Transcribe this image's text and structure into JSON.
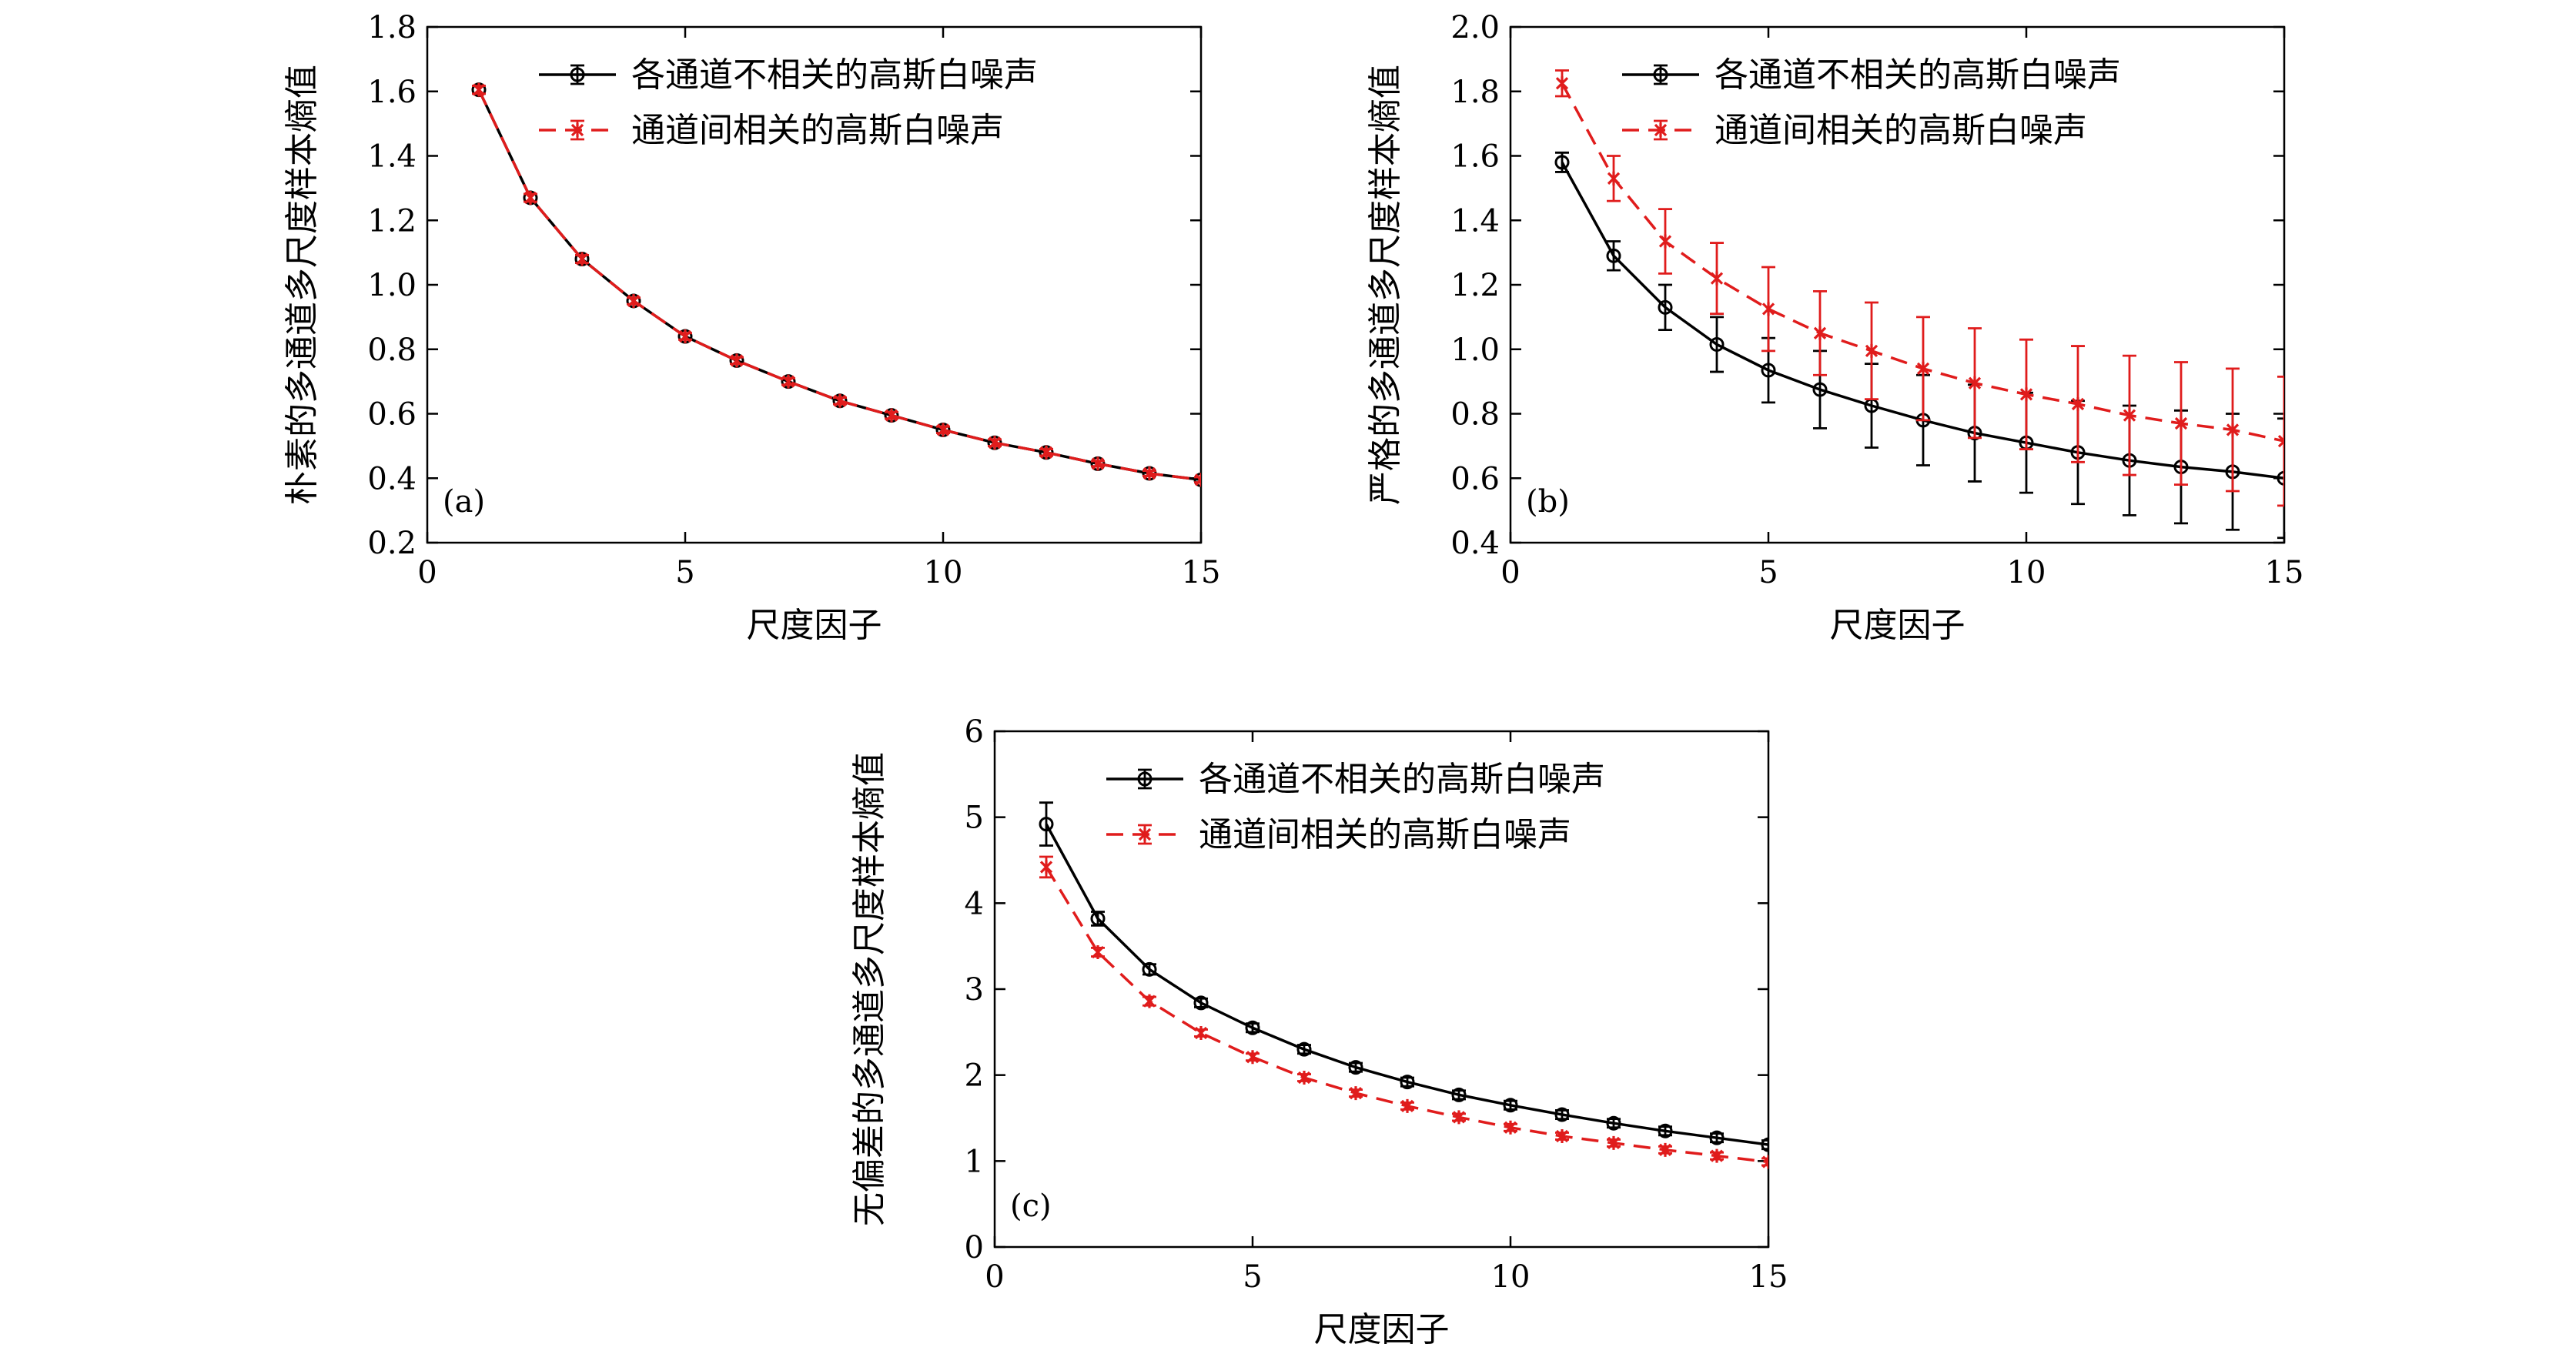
{
  "colors": {
    "uncorrelated": "#000000",
    "correlated": "#e01c1c"
  },
  "chart_data": [
    {
      "id": "a",
      "type": "line",
      "panel_label": "(a)",
      "xlabel": "尺度因子",
      "ylabel": "朴素的多通道多尺度样本熵值",
      "xlim": [
        0,
        15
      ],
      "xticks": [
        0,
        5,
        10,
        15
      ],
      "ylim": [
        0.2,
        1.8
      ],
      "yticks": [
        0.2,
        0.4,
        0.6,
        0.8,
        1.0,
        1.2,
        1.4,
        1.6,
        1.8
      ],
      "ytick_labels": [
        "0.2",
        "0.4",
        "0.6",
        "0.8",
        "1.0",
        "1.2",
        "1.4",
        "1.6",
        "1.8"
      ],
      "legend_position": "top-right",
      "x": [
        1,
        2,
        3,
        4,
        5,
        6,
        7,
        8,
        9,
        10,
        11,
        12,
        13,
        14,
        15
      ],
      "series": [
        {
          "name": "各通道不相关的高斯白噪声",
          "color_key": "uncorrelated",
          "style": "solid",
          "marker": "circle",
          "values": [
            1.605,
            1.27,
            1.08,
            0.95,
            0.84,
            0.765,
            0.7,
            0.64,
            0.595,
            0.55,
            0.51,
            0.48,
            0.445,
            0.415,
            0.395
          ],
          "errors": [
            0.012,
            0.012,
            0.012,
            0.01,
            0.01,
            0.01,
            0.01,
            0.01,
            0.01,
            0.01,
            0.01,
            0.01,
            0.008,
            0.008,
            0.008
          ]
        },
        {
          "name": "通道间相关的高斯白噪声",
          "color_key": "correlated",
          "style": "dashed",
          "marker": "x",
          "values": [
            1.605,
            1.27,
            1.08,
            0.95,
            0.84,
            0.765,
            0.7,
            0.64,
            0.595,
            0.55,
            0.51,
            0.48,
            0.445,
            0.415,
            0.395
          ],
          "errors": [
            0.012,
            0.012,
            0.012,
            0.01,
            0.01,
            0.01,
            0.01,
            0.01,
            0.01,
            0.01,
            0.01,
            0.01,
            0.008,
            0.008,
            0.008
          ]
        }
      ]
    },
    {
      "id": "b",
      "type": "line",
      "panel_label": "(b)",
      "xlabel": "尺度因子",
      "ylabel": "严格的多通道多尺度样本熵值",
      "xlim": [
        0,
        15
      ],
      "xticks": [
        0,
        5,
        10,
        15
      ],
      "ylim": [
        0.4,
        2.0
      ],
      "yticks": [
        0.4,
        0.6,
        0.8,
        1.0,
        1.2,
        1.4,
        1.6,
        1.8,
        2.0
      ],
      "ytick_labels": [
        "0.4",
        "0.6",
        "0.8",
        "1.0",
        "1.2",
        "1.4",
        "1.6",
        "1.8",
        "2.0"
      ],
      "legend_position": "top-right",
      "x": [
        1,
        2,
        3,
        4,
        5,
        6,
        7,
        8,
        9,
        10,
        11,
        12,
        13,
        14,
        15
      ],
      "series": [
        {
          "name": "各通道不相关的高斯白噪声",
          "color_key": "uncorrelated",
          "style": "solid",
          "marker": "circle",
          "values": [
            1.58,
            1.29,
            1.13,
            1.015,
            0.935,
            0.875,
            0.825,
            0.78,
            0.74,
            0.71,
            0.68,
            0.655,
            0.635,
            0.62,
            0.6
          ],
          "errors": [
            0.03,
            0.045,
            0.07,
            0.085,
            0.1,
            0.12,
            0.13,
            0.14,
            0.15,
            0.155,
            0.16,
            0.17,
            0.175,
            0.18,
            0.185
          ]
        },
        {
          "name": "通道间相关的高斯白噪声",
          "color_key": "correlated",
          "style": "dashed",
          "marker": "x",
          "values": [
            1.825,
            1.53,
            1.335,
            1.22,
            1.125,
            1.05,
            0.995,
            0.94,
            0.895,
            0.86,
            0.83,
            0.795,
            0.77,
            0.75,
            0.715
          ],
          "errors": [
            0.04,
            0.07,
            0.1,
            0.11,
            0.13,
            0.13,
            0.15,
            0.16,
            0.17,
            0.17,
            0.18,
            0.185,
            0.19,
            0.19,
            0.2
          ]
        }
      ]
    },
    {
      "id": "c",
      "type": "line",
      "panel_label": "(c)",
      "xlabel": "尺度因子",
      "ylabel": "无偏差的多通道多尺度样本熵值",
      "xlim": [
        0,
        15
      ],
      "xticks": [
        0,
        5,
        10,
        15
      ],
      "ylim": [
        0,
        6
      ],
      "yticks": [
        0,
        1,
        2,
        3,
        4,
        5,
        6
      ],
      "ytick_labels": [
        "0",
        "1",
        "2",
        "3",
        "4",
        "5",
        "6"
      ],
      "legend_position": "top-right",
      "x": [
        1,
        2,
        3,
        4,
        5,
        6,
        7,
        8,
        9,
        10,
        11,
        12,
        13,
        14,
        15
      ],
      "series": [
        {
          "name": "各通道不相关的高斯白噪声",
          "color_key": "uncorrelated",
          "style": "solid",
          "marker": "circle",
          "values": [
            4.92,
            3.82,
            3.23,
            2.84,
            2.55,
            2.3,
            2.09,
            1.92,
            1.77,
            1.65,
            1.54,
            1.44,
            1.35,
            1.27,
            1.19
          ],
          "errors": [
            0.25,
            0.08,
            0.06,
            0.05,
            0.05,
            0.05,
            0.05,
            0.05,
            0.05,
            0.05,
            0.05,
            0.05,
            0.05,
            0.05,
            0.05
          ]
        },
        {
          "name": "通道间相关的高斯白噪声",
          "color_key": "correlated",
          "style": "dashed",
          "marker": "x",
          "values": [
            4.42,
            3.43,
            2.86,
            2.49,
            2.21,
            1.97,
            1.79,
            1.64,
            1.51,
            1.39,
            1.29,
            1.21,
            1.13,
            1.06,
            0.99
          ],
          "errors": [
            0.12,
            0.05,
            0.05,
            0.04,
            0.04,
            0.04,
            0.04,
            0.04,
            0.04,
            0.04,
            0.04,
            0.04,
            0.04,
            0.04,
            0.04
          ]
        }
      ]
    }
  ]
}
